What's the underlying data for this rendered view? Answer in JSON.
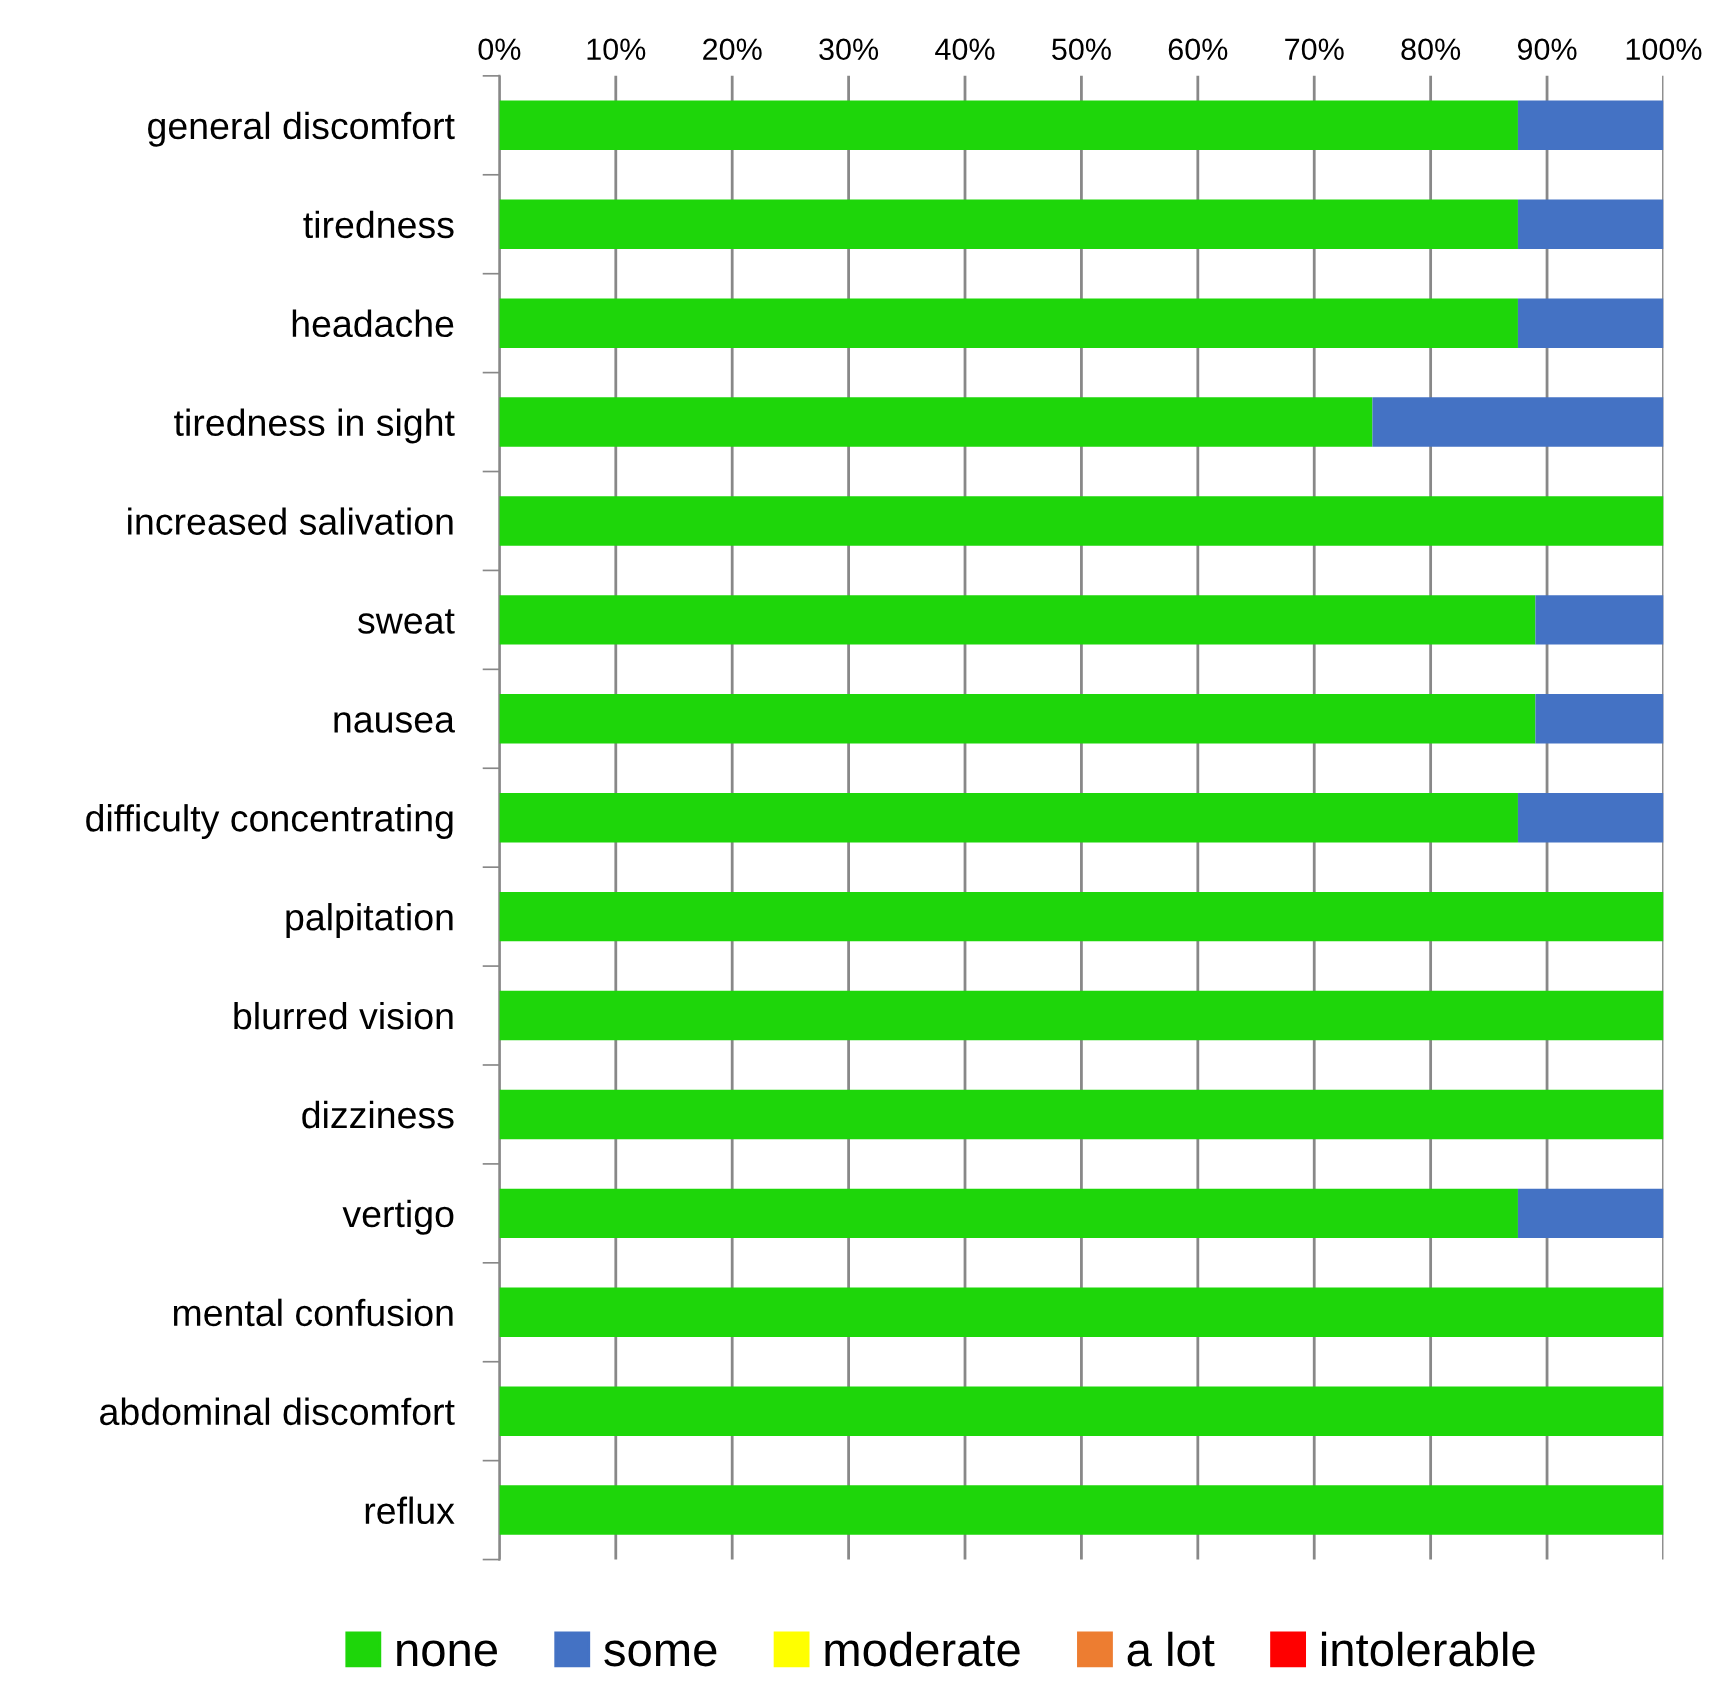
{
  "chart_data": {
    "type": "bar",
    "orientation": "horizontal",
    "stacked": true,
    "categories": [
      "general discomfort",
      "tiredness",
      "headache",
      "tiredness in sight",
      "increased salivation",
      "sweat",
      "nausea",
      "difficulty concentrating",
      "palpitation",
      "blurred vision",
      "dizziness",
      "vertigo",
      "mental confusion",
      "abdominal discomfort",
      "reflux"
    ],
    "series": [
      {
        "name": "none",
        "color": "#1ed60a",
        "values": [
          87.5,
          87.5,
          87.5,
          75,
          100,
          89,
          89,
          87.5,
          100,
          100,
          100,
          87.5,
          100,
          100,
          100
        ]
      },
      {
        "name": "some",
        "color": "#4472c4",
        "values": [
          12.5,
          12.5,
          12.5,
          25,
          0,
          11,
          11,
          12.5,
          0,
          0,
          0,
          12.5,
          0,
          0,
          0
        ]
      },
      {
        "name": "moderate",
        "color": "#ffff00",
        "values": [
          0,
          0,
          0,
          0,
          0,
          0,
          0,
          0,
          0,
          0,
          0,
          0,
          0,
          0,
          0
        ]
      },
      {
        "name": "a lot",
        "color": "#ed7d31",
        "values": [
          0,
          0,
          0,
          0,
          0,
          0,
          0,
          0,
          0,
          0,
          0,
          0,
          0,
          0,
          0
        ]
      },
      {
        "name": "intolerable",
        "color": "#ff0000",
        "values": [
          0,
          0,
          0,
          0,
          0,
          0,
          0,
          0,
          0,
          0,
          0,
          0,
          0,
          0,
          0
        ]
      }
    ],
    "xlim": [
      0,
      100
    ],
    "xticks": [
      {
        "value": 0,
        "label": "0%"
      },
      {
        "value": 10,
        "label": "10%"
      },
      {
        "value": 20,
        "label": "20%"
      },
      {
        "value": 30,
        "label": "30%"
      },
      {
        "value": 40,
        "label": "40%"
      },
      {
        "value": 50,
        "label": "50%"
      },
      {
        "value": 60,
        "label": "60%"
      },
      {
        "value": 70,
        "label": "70%"
      },
      {
        "value": 80,
        "label": "80%"
      },
      {
        "value": 90,
        "label": "90%"
      },
      {
        "value": 100,
        "label": "100%"
      }
    ],
    "grid": "x",
    "legend": "bottom"
  }
}
